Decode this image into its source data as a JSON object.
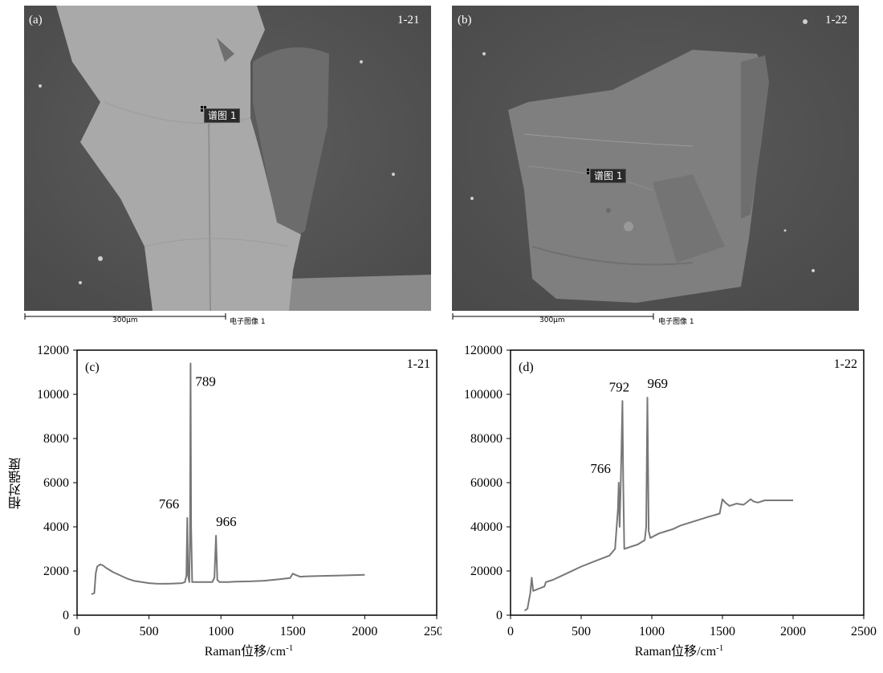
{
  "images": [
    {
      "panel_label": "(a)",
      "sample_label": "1-21",
      "spot_tag": "谱图 1",
      "scale_text": "300μm",
      "image_caption": "电子图像 1"
    },
    {
      "panel_label": "(b)",
      "sample_label": "1-22",
      "spot_tag": "谱图 1",
      "scale_text": "300μm",
      "image_caption": "电子图像 1"
    }
  ],
  "chart_data": [
    {
      "type": "line",
      "panel_label": "(c)",
      "sample_label": "1-21",
      "xlabel": "Raman位移/cm",
      "xlabel_sup": "-1",
      "ylabel": "相对强度",
      "xlim": [
        0,
        2500
      ],
      "ylim": [
        0,
        12000
      ],
      "xticks": [
        "0",
        "500",
        "1000",
        "1500",
        "2000",
        "2500"
      ],
      "yticks": [
        "0",
        "2000",
        "4000",
        "6000",
        "8000",
        "10000",
        "12000"
      ],
      "series": [
        {
          "color": "#777777",
          "x": [
            100,
            120,
            130,
            140,
            160,
            180,
            200,
            250,
            300,
            350,
            400,
            450,
            500,
            550,
            600,
            650,
            700,
            730,
            750,
            760,
            766,
            772,
            780,
            785,
            789,
            793,
            800,
            810,
            850,
            900,
            940,
            955,
            966,
            975,
            990,
            1050,
            1100,
            1200,
            1300,
            1400,
            1480,
            1500,
            1520,
            1550,
            1600,
            1700,
            1800,
            1900,
            2000
          ],
          "y": [
            950,
            1000,
            1900,
            2200,
            2300,
            2250,
            2150,
            1950,
            1800,
            1650,
            1550,
            1500,
            1450,
            1430,
            1420,
            1430,
            1440,
            1450,
            1500,
            1800,
            4400,
            1800,
            1500,
            3500,
            11400,
            4000,
            1500,
            1500,
            1500,
            1500,
            1500,
            1700,
            3600,
            1600,
            1500,
            1500,
            1520,
            1530,
            1560,
            1620,
            1680,
            1880,
            1820,
            1740,
            1760,
            1780,
            1790,
            1810,
            1830
          ]
        }
      ],
      "annotations": [
        {
          "text": "766",
          "x": 766,
          "y": 4400
        },
        {
          "text": "789",
          "x": 789,
          "y": 11400
        },
        {
          "text": "966",
          "x": 966,
          "y": 3600
        }
      ]
    },
    {
      "type": "line",
      "panel_label": "(d)",
      "sample_label": "1-22",
      "xlabel": "Raman位移/cm",
      "xlabel_sup": "-1",
      "ylabel": "",
      "xlim": [
        0,
        2500
      ],
      "ylim": [
        0,
        120000
      ],
      "xticks": [
        "0",
        "500",
        "1000",
        "1500",
        "2000",
        "2500"
      ],
      "yticks": [
        "0",
        "20000",
        "40000",
        "60000",
        "80000",
        "100000",
        "120000"
      ],
      "series": [
        {
          "color": "#777777",
          "x": [
            100,
            120,
            140,
            150,
            160,
            200,
            240,
            250,
            300,
            400,
            500,
            600,
            700,
            740,
            760,
            766,
            772,
            780,
            785,
            792,
            798,
            805,
            850,
            900,
            950,
            960,
            969,
            978,
            990,
            1050,
            1100,
            1150,
            1200,
            1300,
            1400,
            1480,
            1500,
            1520,
            1550,
            1600,
            1650,
            1700,
            1720,
            1750,
            1800,
            1900,
            2000
          ],
          "y": [
            2000,
            3000,
            10000,
            17000,
            11000,
            12000,
            13000,
            15000,
            16000,
            19000,
            22000,
            24500,
            27000,
            30000,
            48000,
            60000,
            40000,
            60000,
            75000,
            97000,
            60000,
            30000,
            31000,
            32000,
            34000,
            40000,
            98500,
            38000,
            35000,
            37000,
            38000,
            39000,
            40500,
            42500,
            44500,
            46000,
            52500,
            51000,
            49500,
            50500,
            50000,
            52500,
            51500,
            51000,
            52000,
            52000,
            52000
          ]
        }
      ],
      "annotations": [
        {
          "text": "766",
          "x": 766,
          "y": 60000
        },
        {
          "text": "792",
          "x": 792,
          "y": 97000
        },
        {
          "text": "969",
          "x": 969,
          "y": 98500
        }
      ]
    }
  ]
}
